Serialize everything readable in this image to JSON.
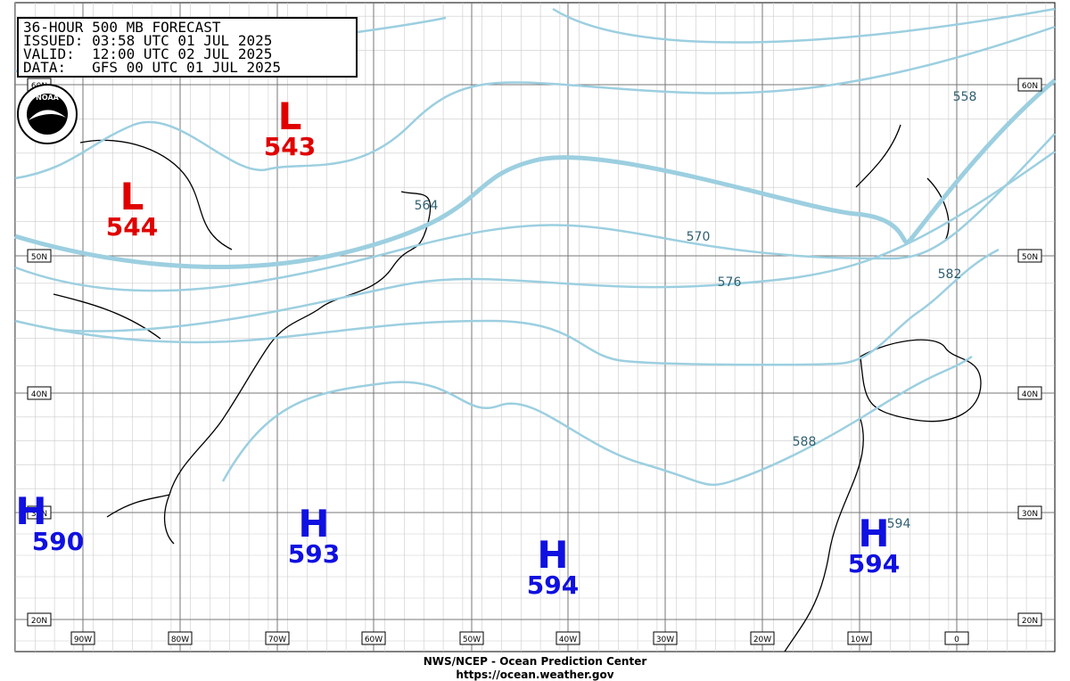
{
  "header": {
    "lines": [
      "36-HOUR 500 MB FORECAST",
      "ISSUED: 03:58 UTC 01 JUL 2025",
      "VALID:  12:00 UTC 02 JUL 2025",
      "DATA:   GFS 00 UTC 01 JUL 2025"
    ]
  },
  "logo": "NOAA",
  "centers": [
    {
      "symbol": "L",
      "value": 543
    },
    {
      "symbol": "L",
      "value": 544
    },
    {
      "symbol": "H",
      "value": 590
    },
    {
      "symbol": "H",
      "value": 593
    },
    {
      "symbol": "H",
      "value": 594
    },
    {
      "symbol": "H",
      "value": 594
    }
  ],
  "contour_labels": [
    558,
    564,
    570,
    576,
    582,
    588,
    594
  ],
  "latitude_labels": [
    "60N",
    "50N",
    "40N",
    "30N",
    "20N"
  ],
  "longitude_labels": [
    "90W",
    "80W",
    "70W",
    "60W",
    "50W",
    "40W",
    "30W",
    "20W",
    "10W",
    "0"
  ],
  "footer": {
    "line1": "NWS/NCEP - Ocean Prediction Center",
    "line2": "https://ocean.weather.gov"
  }
}
